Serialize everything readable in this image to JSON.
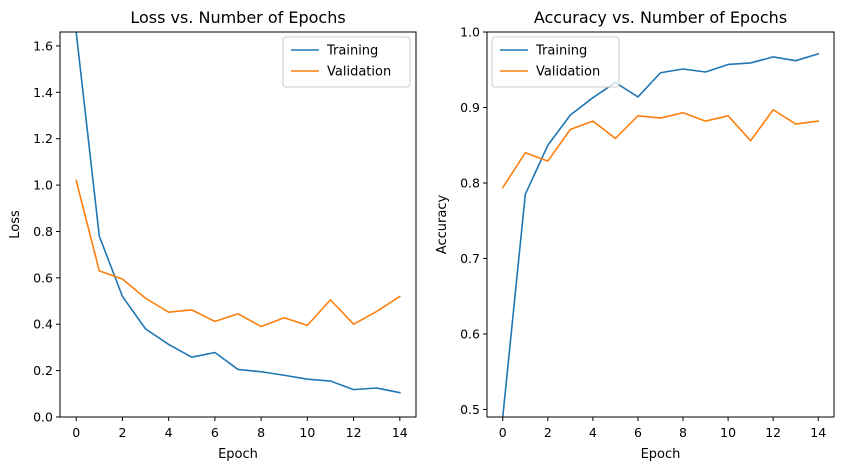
{
  "chart_data": [
    {
      "type": "line",
      "title": "Loss vs. Number of Epochs",
      "xlabel": "Epoch",
      "ylabel": "Loss",
      "xlim": [
        -0.7,
        14.7
      ],
      "ylim": [
        0.0,
        1.66
      ],
      "xticks": [
        0,
        2,
        4,
        6,
        8,
        10,
        12,
        14
      ],
      "yticks": [
        0.0,
        0.2,
        0.4,
        0.6,
        0.8,
        1.0,
        1.2,
        1.4,
        1.6
      ],
      "ytick_format": 1,
      "legend_position": "top-right",
      "x": [
        0,
        1,
        2,
        3,
        4,
        5,
        6,
        7,
        8,
        9,
        10,
        11,
        12,
        13,
        14
      ],
      "series": [
        {
          "name": "Training",
          "color": "#1f77b4",
          "values": [
            1.66,
            0.78,
            0.52,
            0.38,
            0.313,
            0.258,
            0.278,
            0.205,
            0.195,
            0.18,
            0.163,
            0.155,
            0.118,
            0.125,
            0.105
          ]
        },
        {
          "name": "Validation",
          "color": "#ff7f0e",
          "values": [
            1.02,
            0.63,
            0.595,
            0.512,
            0.452,
            0.462,
            0.412,
            0.445,
            0.39,
            0.428,
            0.395,
            0.505,
            0.4,
            0.455,
            0.52
          ]
        }
      ]
    },
    {
      "type": "line",
      "title": "Accuracy vs. Number of Epochs",
      "xlabel": "Epoch",
      "ylabel": "Accuracy",
      "xlim": [
        -0.7,
        14.7
      ],
      "ylim": [
        0.49,
        1.0
      ],
      "xticks": [
        0,
        2,
        4,
        6,
        8,
        10,
        12,
        14
      ],
      "yticks": [
        0.5,
        0.6,
        0.7,
        0.8,
        0.9,
        1.0
      ],
      "ytick_format": 1,
      "legend_position": "top-left",
      "x": [
        0,
        1,
        2,
        3,
        4,
        5,
        6,
        7,
        8,
        9,
        10,
        11,
        12,
        13,
        14
      ],
      "series": [
        {
          "name": "Training",
          "color": "#1f77b4",
          "values": [
            0.49,
            0.785,
            0.85,
            0.89,
            0.913,
            0.933,
            0.914,
            0.946,
            0.951,
            0.947,
            0.957,
            0.959,
            0.967,
            0.962,
            0.971
          ]
        },
        {
          "name": "Validation",
          "color": "#ff7f0e",
          "values": [
            0.794,
            0.84,
            0.829,
            0.871,
            0.882,
            0.859,
            0.889,
            0.886,
            0.893,
            0.882,
            0.889,
            0.856,
            0.897,
            0.878,
            0.882
          ]
        }
      ]
    }
  ]
}
